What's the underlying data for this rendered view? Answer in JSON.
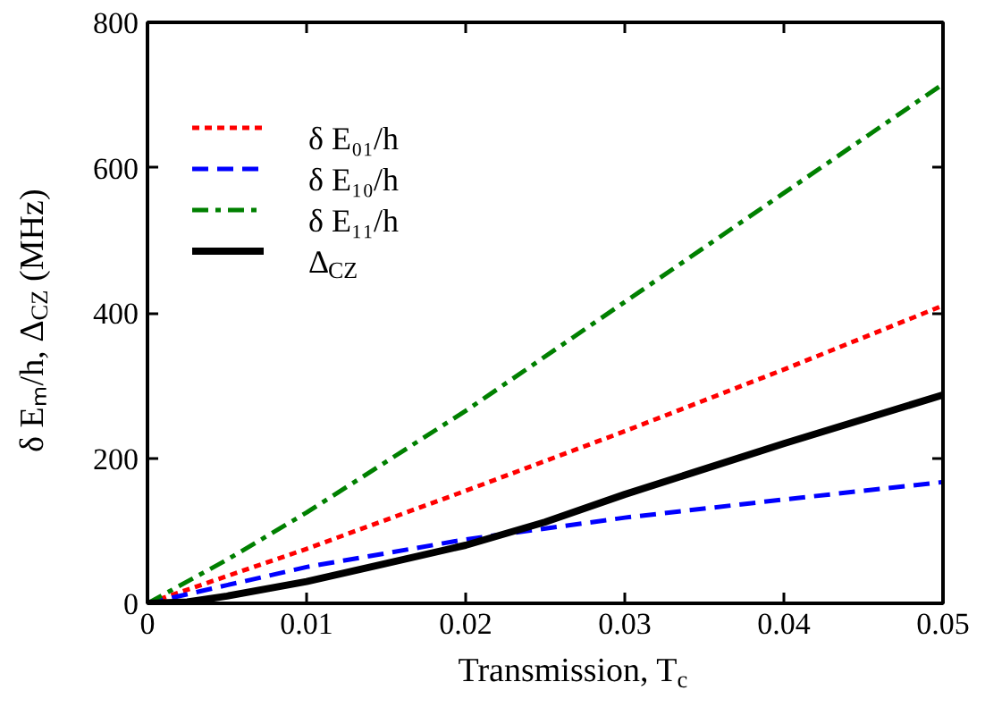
{
  "chart_data": {
    "type": "line",
    "xlabel": "Transmission, T$_{c}$",
    "ylabel": "δ Eₘ/h, Δ$_{CZ}$ (MHz)",
    "xlim": [
      0,
      0.05
    ],
    "ylim": [
      0,
      800
    ],
    "xticks": [
      0,
      0.01,
      0.02,
      0.03,
      0.04,
      0.05
    ],
    "yticks": [
      0,
      200,
      400,
      600,
      800
    ],
    "grid": false,
    "legend": "top left",
    "marker": "none",
    "series": [
      {
        "name": "δ E₀₁/h",
        "color": "#ff0000",
        "line_style": "dotted",
        "x": [
          0,
          0.01,
          0.02,
          0.03,
          0.04,
          0.05
        ],
        "values": [
          0,
          75,
          155,
          237,
          322,
          410
        ]
      },
      {
        "name": "δ E₁₀/h",
        "color": "#0000ff",
        "line_style": "dashed",
        "x": [
          0,
          0.005,
          0.01,
          0.02,
          0.03,
          0.04,
          0.05
        ],
        "values": [
          0,
          25,
          50,
          88,
          118,
          143,
          167
        ]
      },
      {
        "name": "δ E₁₁/h",
        "color": "#008000",
        "line_style": "dashdot",
        "x": [
          0,
          0.005,
          0.01,
          0.02,
          0.03,
          0.04,
          0.05
        ],
        "values": [
          0,
          60,
          125,
          265,
          415,
          565,
          715
        ]
      },
      {
        "name": "Δ$_{CZ}$",
        "color": "#000000",
        "line_style": "solid",
        "x": [
          0,
          0.0025,
          0.005,
          0.01,
          0.015,
          0.02,
          0.025,
          0.03,
          0.04,
          0.05
        ],
        "values": [
          0,
          2,
          10,
          30,
          55,
          80,
          112,
          150,
          220,
          287
        ]
      }
    ]
  }
}
